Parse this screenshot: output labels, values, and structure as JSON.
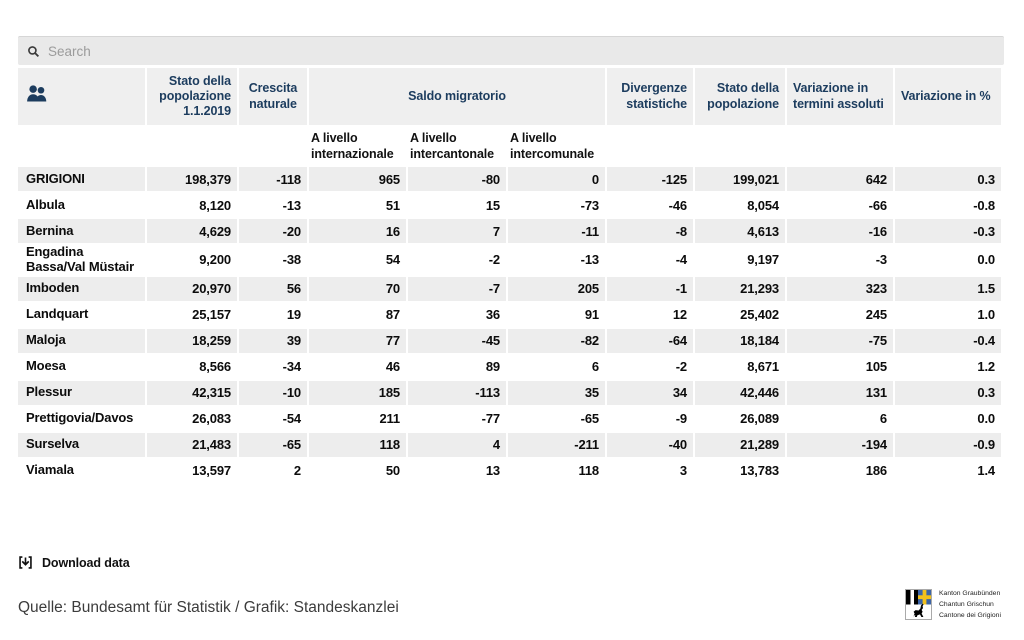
{
  "search": {
    "placeholder": "Search"
  },
  "icons": {
    "search": "search-icon (magnifier)",
    "people": "people-icon (population table)",
    "download": "download-icon (bracket with down arrow)",
    "coat_of_arms": "graubuenden-coat-of-arms"
  },
  "colors": {
    "accent": "#1c3c5e",
    "header_bg": "#efefef",
    "stripe_bg": "#ededed",
    "search_bg": "#e9e9e9",
    "shield_blue": "#3c64a6",
    "shield_yellow": "#f2c11c"
  },
  "table": {
    "header": {
      "col_population_2019": "Stato della popolazione 1.1.2019",
      "col_natural_growth": "Crescita naturale",
      "col_migration": "Saldo migratorio",
      "sub_international": "A livello internazionale",
      "sub_intercantonal": "A livello intercantonale",
      "sub_intercommunal": "A livello intercomunale",
      "col_divergences": "Divergenze statistiche",
      "col_population": "Stato della popolazione",
      "col_variation_abs": "Variazione in termini assoluti",
      "col_variation_pct": "Variazione in %"
    },
    "rows": [
      {
        "name": "GRIGIONI",
        "values": [
          "198,379",
          "-118",
          "965",
          "-80",
          "0",
          "-125",
          "199,021",
          "642",
          "0.3"
        ]
      },
      {
        "name": "Albula",
        "values": [
          "8,120",
          "-13",
          "51",
          "15",
          "-73",
          "-46",
          "8,054",
          "-66",
          "-0.8"
        ]
      },
      {
        "name": "Bernina",
        "values": [
          "4,629",
          "-20",
          "16",
          "7",
          "-11",
          "-8",
          "4,613",
          "-16",
          "-0.3"
        ]
      },
      {
        "name": "Engadina Bassa/Val Müstair",
        "values": [
          "9,200",
          "-38",
          "54",
          "-2",
          "-13",
          "-4",
          "9,197",
          "-3",
          "0.0"
        ]
      },
      {
        "name": "Imboden",
        "values": [
          "20,970",
          "56",
          "70",
          "-7",
          "205",
          "-1",
          "21,293",
          "323",
          "1.5"
        ]
      },
      {
        "name": "Landquart",
        "values": [
          "25,157",
          "19",
          "87",
          "36",
          "91",
          "12",
          "25,402",
          "245",
          "1.0"
        ]
      },
      {
        "name": "Maloja",
        "values": [
          "18,259",
          "39",
          "77",
          "-45",
          "-82",
          "-64",
          "18,184",
          "-75",
          "-0.4"
        ]
      },
      {
        "name": "Moesa",
        "values": [
          "8,566",
          "-34",
          "46",
          "89",
          "6",
          "-2",
          "8,671",
          "105",
          "1.2"
        ]
      },
      {
        "name": "Plessur",
        "values": [
          "42,315",
          "-10",
          "185",
          "-113",
          "35",
          "34",
          "42,446",
          "131",
          "0.3"
        ]
      },
      {
        "name": "Prettigovia/Davos",
        "values": [
          "26,083",
          "-54",
          "211",
          "-77",
          "-65",
          "-9",
          "26,089",
          "6",
          "0.0"
        ]
      },
      {
        "name": "Surselva",
        "values": [
          "21,483",
          "-65",
          "118",
          "4",
          "-211",
          "-40",
          "21,289",
          "-194",
          "-0.9"
        ]
      },
      {
        "name": "Viamala",
        "values": [
          "13,597",
          "2",
          "50",
          "13",
          "118",
          "3",
          "13,783",
          "186",
          "1.4"
        ]
      }
    ]
  },
  "footer": {
    "download_label": "Download data",
    "source": "Quelle: Bundesamt für Statistik / Grafik: Standeskanzlei",
    "logo_lines": [
      "Kanton Graubünden",
      "Chantun Grischun",
      "Cantone dei Grigioni"
    ]
  }
}
